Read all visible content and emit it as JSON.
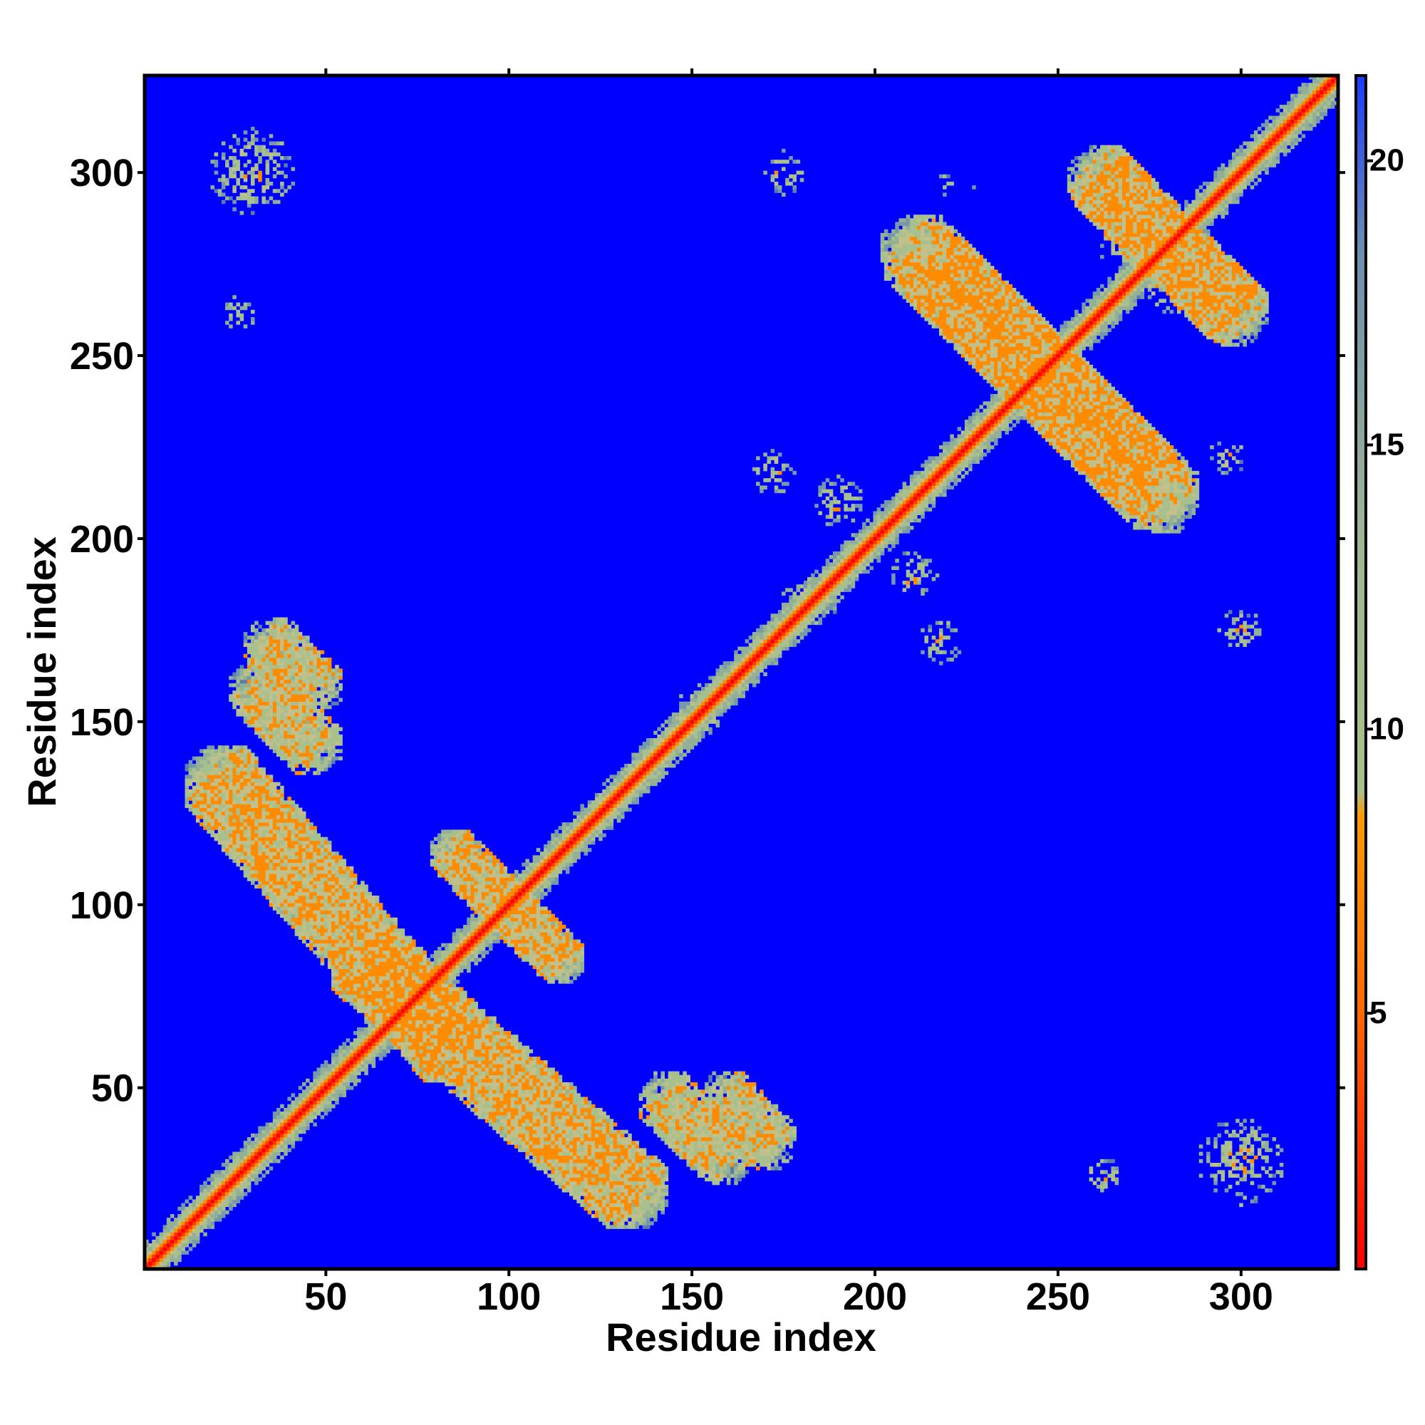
{
  "chart_data": {
    "type": "heatmap",
    "title": "",
    "xlabel": "Residue index",
    "ylabel": "Residue index",
    "xlim": [
      1,
      326
    ],
    "ylim": [
      1,
      326
    ],
    "xticks": [
      50,
      100,
      150,
      200,
      250,
      300
    ],
    "yticks": [
      50,
      100,
      150,
      200,
      250,
      300
    ],
    "colorbar": {
      "range": [
        0.5,
        21.5
      ],
      "ticks": [
        5,
        10,
        15,
        20
      ],
      "colors": {
        "far": "#0000ff",
        "near": "#ff0000",
        "mid": "#ff8c00",
        "greenish": "#9bbf8c",
        "blueish": "#5a7ea8"
      }
    },
    "diagonal": {
      "core": 3,
      "width_residues": 7
    },
    "contact_regions": [
      {
        "kind": "antiparallel",
        "from": [
          20,
          135
        ],
        "to": [
          85,
          60
        ],
        "spread": 8,
        "density": 0.75
      },
      {
        "kind": "antiparallel",
        "from": [
          84,
          115
        ],
        "to": [
          115,
          84
        ],
        "spread": 5,
        "density": 0.6
      },
      {
        "kind": "antiparallel",
        "from": [
          30,
          160
        ],
        "to": [
          48,
          142
        ],
        "spread": 6,
        "density": 0.6
      },
      {
        "kind": "antiparallel",
        "from": [
          158,
          48
        ],
        "to": [
          172,
          34
        ],
        "spread": 6,
        "density": 0.55
      },
      {
        "kind": "antiparallel",
        "from": [
          215,
          275
        ],
        "to": [
          280,
          210
        ],
        "spread": 8,
        "density": 0.7
      },
      {
        "kind": "antiparallel",
        "from": [
          260,
          300
        ],
        "to": [
          298,
          262
        ],
        "spread": 7,
        "density": 0.6
      },
      {
        "kind": "patch",
        "center": [
          30,
          300
        ],
        "radius": 12,
        "density": 0.6
      },
      {
        "kind": "patch",
        "center": [
          300,
          30
        ],
        "radius": 12,
        "density": 0.6
      },
      {
        "kind": "patch",
        "center": [
          26,
          262
        ],
        "radius": 5,
        "density": 0.5
      },
      {
        "kind": "patch",
        "center": [
          262,
          26
        ],
        "radius": 5,
        "density": 0.5
      },
      {
        "kind": "patch",
        "center": [
          175,
          300
        ],
        "radius": 6,
        "density": 0.5
      },
      {
        "kind": "patch",
        "center": [
          300,
          175
        ],
        "radius": 6,
        "density": 0.5
      },
      {
        "kind": "patch",
        "center": [
          172,
          218
        ],
        "radius": 6,
        "density": 0.5
      },
      {
        "kind": "patch",
        "center": [
          218,
          172
        ],
        "radius": 6,
        "density": 0.5
      },
      {
        "kind": "patch",
        "center": [
          190,
          210
        ],
        "radius": 7,
        "density": 0.55
      },
      {
        "kind": "patch",
        "center": [
          210,
          190
        ],
        "radius": 7,
        "density": 0.55
      },
      {
        "kind": "patch",
        "center": [
          222,
          296
        ],
        "radius": 5,
        "density": 0.35
      },
      {
        "kind": "patch",
        "center": [
          296,
          222
        ],
        "radius": 5,
        "density": 0.35
      },
      {
        "kind": "patch",
        "center": [
          152,
          152
        ],
        "radius": 8,
        "density": 0.45
      },
      {
        "kind": "patch",
        "center": [
          182,
          182
        ],
        "radius": 8,
        "density": 0.45
      },
      {
        "kind": "patch",
        "center": [
          270,
          280
        ],
        "radius": 9,
        "density": 0.45
      },
      {
        "kind": "patch",
        "center": [
          280,
          270
        ],
        "radius": 9,
        "density": 0.45
      }
    ]
  }
}
